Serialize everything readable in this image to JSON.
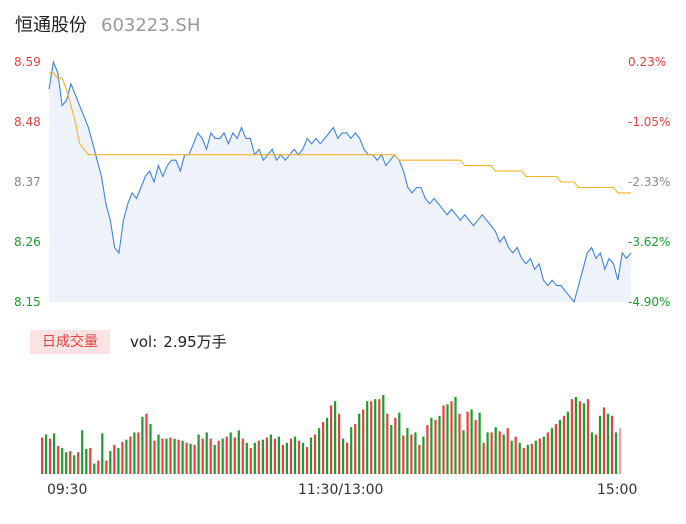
{
  "header": {
    "stock_name": "恒通股份",
    "stock_code": "603223.SH"
  },
  "volume_panel": {
    "tab_label": "日成交量",
    "vol_label": "vol:",
    "vol_value": "2.95万手"
  },
  "colors": {
    "price_line": "#3f82e0",
    "avg_line": "#f5b323",
    "up": "#e8413d",
    "down": "#1a9e2a",
    "neutral": "#888888",
    "area_fill": "#eef3fb"
  },
  "chart_data": [
    {
      "type": "line",
      "title": "",
      "x_tick_labels": [
        "09:30",
        "11:30/13:00",
        "15:00"
      ],
      "price_ticks": [
        "8.59",
        "8.48",
        "8.37",
        "8.26",
        "8.15"
      ],
      "pct_ticks": [
        "0.23%",
        "-1.05%",
        "-2.33%",
        "-3.62%",
        "-4.90%"
      ],
      "ylim": [
        8.15,
        8.59
      ],
      "series": [
        {
          "values": [
            8.54,
            8.59,
            8.57,
            8.51,
            8.52,
            8.55,
            8.53,
            8.51,
            8.49,
            8.47,
            8.44,
            8.41,
            8.38,
            8.33,
            8.3,
            8.25,
            8.24,
            8.3,
            8.33,
            8.35,
            8.34,
            8.36,
            8.38,
            8.39,
            8.37,
            8.4,
            8.38,
            8.4,
            8.41,
            8.41,
            8.39,
            8.42,
            8.42,
            8.44,
            8.46,
            8.45,
            8.43,
            8.46,
            8.45,
            8.45,
            8.46,
            8.44,
            8.46,
            8.45,
            8.47,
            8.45,
            8.45,
            8.42,
            8.43,
            8.41,
            8.42,
            8.43,
            8.41,
            8.42,
            8.41,
            8.42,
            8.43,
            8.42,
            8.43,
            8.45,
            8.44,
            8.45,
            8.44,
            8.45,
            8.46,
            8.47,
            8.45,
            8.46,
            8.46,
            8.45,
            8.46,
            8.45,
            8.43,
            8.42,
            8.42,
            8.41,
            8.42,
            8.4,
            8.41,
            8.42,
            8.41,
            8.39,
            8.36,
            8.35,
            8.36,
            8.36,
            8.34,
            8.33,
            8.34,
            8.33,
            8.32,
            8.31,
            8.32,
            8.31,
            8.3,
            8.31,
            8.3,
            8.29,
            8.3,
            8.31,
            8.3,
            8.29,
            8.28,
            8.26,
            8.27,
            8.25,
            8.24,
            8.25,
            8.23,
            8.22,
            8.23,
            8.21,
            8.22,
            8.19,
            8.18,
            8.19,
            8.18,
            8.18,
            8.17,
            8.16,
            8.15,
            8.18,
            8.21,
            8.24,
            8.25,
            8.23,
            8.24,
            8.21,
            8.23,
            8.22,
            8.19,
            8.24,
            8.23,
            8.24
          ],
          "color": "#3f82e0"
        },
        {
          "values": [
            8.57,
            8.57,
            8.56,
            8.56,
            8.54,
            8.51,
            8.48,
            8.44,
            8.43,
            8.42,
            8.42,
            8.42,
            8.42,
            8.42,
            8.42,
            8.42,
            8.42,
            8.42,
            8.42,
            8.42,
            8.42,
            8.42,
            8.42,
            8.42,
            8.42,
            8.42,
            8.42,
            8.42,
            8.42,
            8.42,
            8.42,
            8.42,
            8.42,
            8.42,
            8.42,
            8.42,
            8.42,
            8.42,
            8.42,
            8.42,
            8.42,
            8.42,
            8.42,
            8.42,
            8.42,
            8.42,
            8.42,
            8.42,
            8.42,
            8.42,
            8.42,
            8.42,
            8.42,
            8.42,
            8.42,
            8.42,
            8.42,
            8.42,
            8.42,
            8.42,
            8.42,
            8.42,
            8.42,
            8.42,
            8.42,
            8.42,
            8.42,
            8.42,
            8.42,
            8.42,
            8.42,
            8.42,
            8.42,
            8.42,
            8.42,
            8.42,
            8.42,
            8.42,
            8.42,
            8.42,
            8.41,
            8.41,
            8.41,
            8.41,
            8.41,
            8.41,
            8.41,
            8.41,
            8.41,
            8.41,
            8.41,
            8.41,
            8.41,
            8.41,
            8.41,
            8.4,
            8.4,
            8.4,
            8.4,
            8.4,
            8.4,
            8.4,
            8.39,
            8.39,
            8.39,
            8.39,
            8.39,
            8.39,
            8.39,
            8.38,
            8.38,
            8.38,
            8.38,
            8.38,
            8.38,
            8.38,
            8.38,
            8.37,
            8.37,
            8.37,
            8.37,
            8.36,
            8.36,
            8.36,
            8.36,
            8.36,
            8.36,
            8.36,
            8.36,
            8.36,
            8.35,
            8.35,
            8.35,
            8.35
          ],
          "color": "#f5b323"
        }
      ]
    },
    {
      "type": "bar",
      "title": "",
      "ylim": [
        0,
        100
      ],
      "values": [
        35,
        38,
        34,
        39,
        27,
        25,
        21,
        22,
        18,
        21,
        42,
        24,
        25,
        10,
        13,
        39,
        13,
        22,
        28,
        25,
        31,
        33,
        36,
        40,
        40,
        55,
        58,
        48,
        32,
        38,
        34,
        34,
        35,
        34,
        33,
        32,
        30,
        29,
        28,
        38,
        34,
        40,
        34,
        28,
        32,
        34,
        36,
        40,
        35,
        42,
        34,
        30,
        25,
        30,
        32,
        33,
        35,
        38,
        34,
        36,
        28,
        30,
        34,
        36,
        32,
        30,
        26,
        35,
        38,
        44,
        50,
        54,
        66,
        70,
        58,
        34,
        30,
        45,
        48,
        58,
        62,
        70,
        70,
        72,
        72,
        76,
        58,
        47,
        54,
        59,
        37,
        44,
        38,
        40,
        28,
        36,
        47,
        54,
        52,
        56,
        66,
        67,
        70,
        74,
        58,
        42,
        60,
        62,
        52,
        59,
        30,
        40,
        40,
        45,
        41,
        38,
        44,
        32,
        36,
        30,
        25,
        28,
        29,
        32,
        34,
        36,
        40,
        44,
        48,
        52,
        56,
        60,
        72,
        74,
        70,
        68,
        72,
        40,
        38,
        56,
        64,
        58,
        56,
        40,
        44
      ],
      "colors": [
        "r",
        "g",
        "r",
        "g",
        "r",
        "g",
        "g",
        "r",
        "g",
        "r",
        "g",
        "g",
        "r",
        "g",
        "r",
        "g",
        "r",
        "g",
        "r",
        "g",
        "r",
        "g",
        "r",
        "g",
        "r",
        "g",
        "r",
        "g",
        "r",
        "g",
        "r",
        "g",
        "r",
        "g",
        "r",
        "g",
        "r",
        "g",
        "r",
        "g",
        "r",
        "g",
        "r",
        "g",
        "r",
        "g",
        "r",
        "g",
        "r",
        "g",
        "r",
        "g",
        "r",
        "g",
        "r",
        "g",
        "r",
        "g",
        "r",
        "g",
        "r",
        "g",
        "r",
        "g",
        "r",
        "g",
        "r",
        "g",
        "r",
        "g",
        "r",
        "g",
        "r",
        "g",
        "r",
        "g",
        "r",
        "g",
        "r",
        "g",
        "r",
        "g",
        "r",
        "g",
        "r",
        "g",
        "r",
        "g",
        "r",
        "g",
        "r",
        "g",
        "r",
        "g",
        "r",
        "g",
        "r",
        "g",
        "r",
        "g",
        "r",
        "g",
        "r",
        "g",
        "r",
        "g",
        "r",
        "g",
        "r",
        "g",
        "r",
        "g",
        "r",
        "g",
        "r",
        "g",
        "r",
        "g",
        "r",
        "g",
        "r",
        "g",
        "r",
        "g",
        "r",
        "g",
        "r",
        "g",
        "r",
        "g",
        "r",
        "g",
        "r",
        "g",
        "r",
        "g",
        "r",
        "g",
        "r",
        "g",
        "r",
        "g",
        "r",
        "g",
        "p"
      ]
    }
  ]
}
